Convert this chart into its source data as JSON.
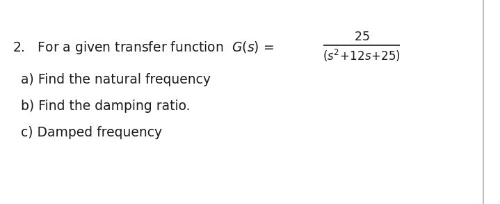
{
  "background_color": "#ffffff",
  "border_color": "#b0b0b0",
  "text_color": "#1a1a1a",
  "font_size_main": 13.5,
  "font_size_items": 13.5,
  "item_a": "a) Find the natural frequency",
  "item_b": "b) Find the damping ratio.",
  "item_c": "c) Damped frequency"
}
